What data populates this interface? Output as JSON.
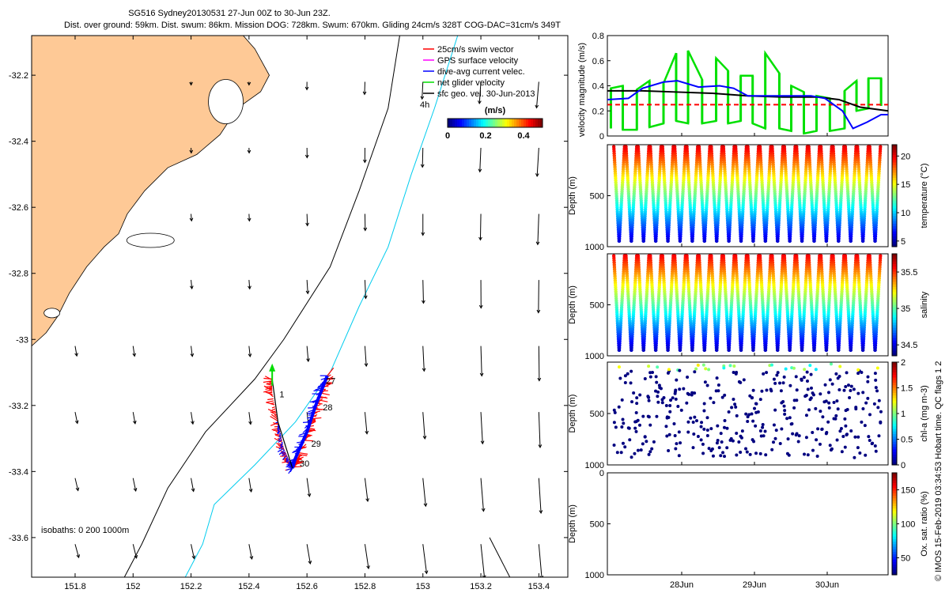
{
  "header": {
    "title": "SG516 Sydney20130531 27-Jun 00Z to 30-Jun 23Z.",
    "subtitle": "Dist. over ground: 59km. Dist. swum: 86km. Mission DOG: 728km. Swum: 670km. Gliding 24cm/s 328T COG-DAC=31cm/s 349T"
  },
  "credit": "© IMOS 15-Feb-2019 03:34:53 Hobart time. QC flags 1  2",
  "chart_data": [
    {
      "type": "map",
      "xlim": [
        151.65,
        153.5
      ],
      "ylim": [
        -33.72,
        -32.08
      ],
      "x_ticks": [
        151.8,
        152,
        152.2,
        152.4,
        152.6,
        152.8,
        153,
        153.2,
        153.4
      ],
      "y_ticks": [
        -32.2,
        -32.4,
        -32.6,
        -32.8,
        -33,
        -33.2,
        -33.4,
        -33.6
      ],
      "legend": {
        "placement": "top-right",
        "entries": [
          {
            "label": "25cm/s swim vector",
            "color": "#ff0000"
          },
          {
            "label": "GPS surface velocity",
            "color": "#ff00ff"
          },
          {
            "label": "dive-avg current velec.",
            "color": "#0000ff"
          },
          {
            "label": "net glider velocity",
            "color": "#00dd00"
          },
          {
            "label": "sfc geo. vel. 30-Jun-2013",
            "color": "#000000"
          }
        ],
        "extra_label": "4h"
      },
      "colorbar": {
        "label": "(m/s)",
        "ticks": [
          0,
          0.2,
          0.4
        ],
        "range": [
          0,
          0.5
        ]
      },
      "isobaths_label": "isobaths: 0   200  1000m",
      "day_labels": [
        {
          "text": "1",
          "lon": 152.505,
          "lat": -33.175
        },
        {
          "text": "27",
          "lon": 152.665,
          "lat": -33.135
        },
        {
          "text": "28",
          "lon": 152.655,
          "lat": -33.215
        },
        {
          "text": "29",
          "lon": 152.615,
          "lat": -33.325
        },
        {
          "text": "30",
          "lon": 152.575,
          "lat": -33.385
        }
      ]
    },
    {
      "type": "line",
      "ylabel": "velocity magnitude (m/s)",
      "ylim": [
        0,
        0.8
      ],
      "y_ticks": [
        0,
        0.2,
        0.4,
        0.6,
        0.8
      ],
      "xlim": [
        0,
        4
      ],
      "series": [
        {
          "color": "#ff0000",
          "dashed": true,
          "x": [
            0,
            4
          ],
          "y": [
            0.25,
            0.25
          ]
        },
        {
          "color": "#000000",
          "x": [
            0,
            0.5,
            1,
            1.5,
            2,
            2.5,
            3,
            3.3,
            3.6,
            4
          ],
          "y": [
            0.36,
            0.36,
            0.35,
            0.34,
            0.32,
            0.31,
            0.31,
            0.29,
            0.23,
            0.2
          ]
        },
        {
          "color": "#0000ff",
          "x": [
            0,
            0.3,
            0.5,
            0.8,
            1,
            1.3,
            1.6,
            1.8,
            2,
            2.3,
            2.6,
            2.9,
            3.1,
            3.35,
            3.5,
            3.7,
            3.9,
            4
          ],
          "y": [
            0.29,
            0.3,
            0.38,
            0.43,
            0.44,
            0.39,
            0.4,
            0.38,
            0.32,
            0.32,
            0.32,
            0.32,
            0.3,
            0.2,
            0.06,
            0.11,
            0.17,
            0.17
          ]
        }
      ],
      "green_bars": {
        "color": "#00e000",
        "x": [
          0.05,
          0.22,
          0.42,
          0.6,
          0.8,
          0.98,
          1.15,
          1.35,
          1.55,
          1.72,
          1.9,
          2.07,
          2.25,
          2.45,
          2.62,
          2.8,
          2.98,
          3.17,
          3.38,
          3.55,
          3.72,
          3.9
        ],
        "lo": [
          0.06,
          0.05,
          0.05,
          0.07,
          0.1,
          0.12,
          0.1,
          0.1,
          0.12,
          0.1,
          0.12,
          0.1,
          0.06,
          0.06,
          0.04,
          0.02,
          0.04,
          0.04,
          0.06,
          0.2,
          0.22,
          0.24
        ],
        "hi": [
          0.38,
          0.4,
          0.37,
          0.44,
          0.42,
          0.66,
          0.68,
          0.45,
          0.62,
          0.52,
          0.48,
          0.48,
          0.66,
          0.5,
          0.4,
          0.35,
          0.32,
          0.3,
          0.36,
          0.44,
          0.46,
          0.46
        ]
      }
    },
    {
      "type": "scatter",
      "ylabel": "Depth (m)",
      "yticks": [
        1000,
        500
      ],
      "ylim": [
        0,
        1000
      ],
      "colorbar_label": "temperature (°C)",
      "colorbar_ticks": [
        5,
        10,
        15,
        20
      ],
      "colorbar_range": [
        4,
        22
      ],
      "profiles": 22,
      "max_depth": 960
    },
    {
      "type": "scatter",
      "ylabel": "Depth (m)",
      "yticks": [
        1000,
        500
      ],
      "ylim": [
        0,
        1000
      ],
      "colorbar_label": "salinity",
      "colorbar_ticks": [
        34.5,
        35,
        35.5
      ],
      "colorbar_range": [
        34.35,
        35.75
      ],
      "profiles": 22,
      "max_depth": 960
    },
    {
      "type": "scatter",
      "ylabel": "Depth (m)",
      "yticks": [
        1000,
        500
      ],
      "ylim": [
        0,
        1000
      ],
      "colorbar_label": "chl-a (mg m-3)",
      "colorbar_ticks": [
        0,
        0.5,
        1,
        1.5,
        2
      ],
      "colorbar_range": [
        0,
        2
      ],
      "profiles": 22,
      "max_depth": 960
    },
    {
      "type": "scatter",
      "ylabel": "Depth (m)",
      "yticks": [
        1000,
        500,
        0
      ],
      "ylim": [
        0,
        1000
      ],
      "colorbar_label": "Ox. sat. ratio (%)",
      "colorbar_ticks": [
        50,
        100,
        150
      ],
      "colorbar_range": [
        25,
        175
      ],
      "x_ticks": [
        "28Jun",
        "29Jun",
        "30Jun"
      ]
    }
  ]
}
